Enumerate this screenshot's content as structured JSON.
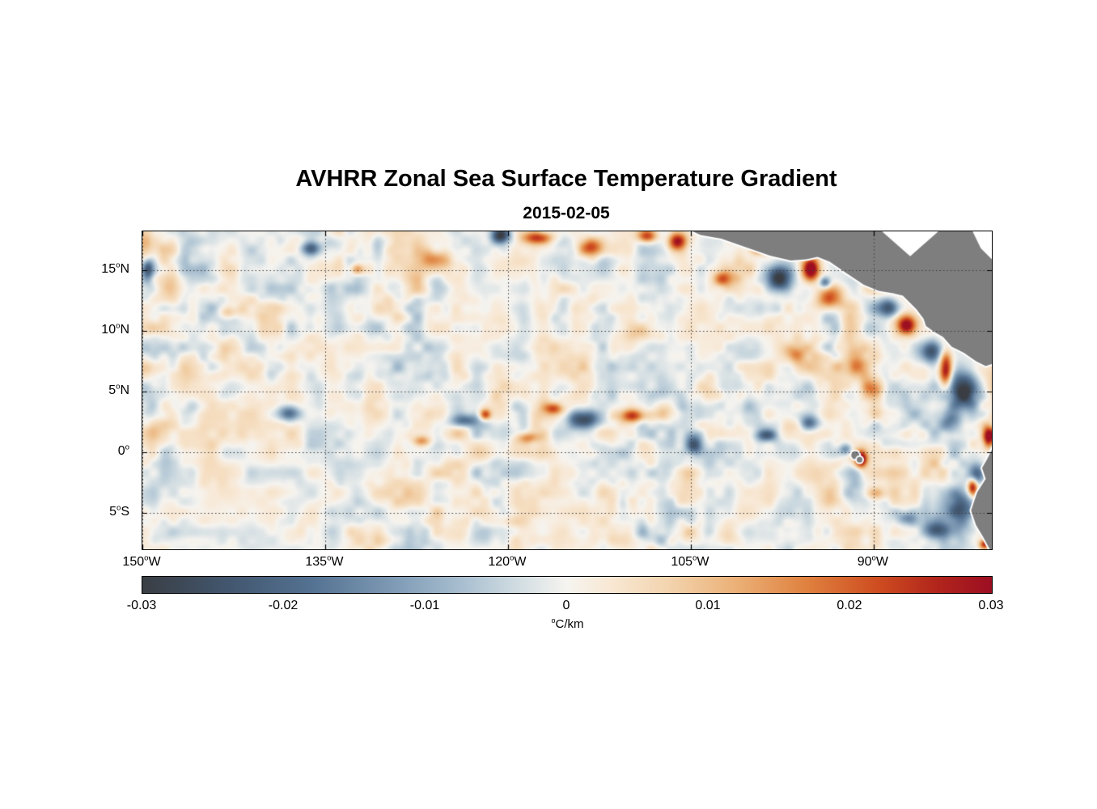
{
  "chart_data": {
    "type": "heatmap",
    "title": "AVHRR Zonal Sea Surface Temperature Gradient",
    "subtitle": "2015-02-05",
    "xlabel": "",
    "ylabel": "",
    "xlim": [
      -150,
      -80.3
    ],
    "ylim": [
      -8,
      18.2
    ],
    "grid": "dotted",
    "x_ticks": [
      {
        "value": -150,
        "text": "150",
        "sup": "o",
        "suffix": "W"
      },
      {
        "value": -135,
        "text": "135",
        "sup": "o",
        "suffix": "W"
      },
      {
        "value": -120,
        "text": "120",
        "sup": "o",
        "suffix": "W"
      },
      {
        "value": -105,
        "text": "105",
        "sup": "o",
        "suffix": "W"
      },
      {
        "value": -90,
        "text": "90",
        "sup": "o",
        "suffix": "W"
      }
    ],
    "y_ticks": [
      {
        "value": 15,
        "text": "15",
        "sup": "o",
        "suffix": "N"
      },
      {
        "value": 10,
        "text": "10",
        "sup": "o",
        "suffix": "N"
      },
      {
        "value": 5,
        "text": "5",
        "sup": "o",
        "suffix": "N"
      },
      {
        "value": 0,
        "text": "0",
        "sup": "o",
        "suffix": ""
      },
      {
        "value": -5,
        "text": "5",
        "sup": "o",
        "suffix": "S"
      }
    ],
    "colorbar": {
      "min": -0.03,
      "max": 0.03,
      "ticks": [
        "-0.03",
        "-0.02",
        "-0.01",
        "0",
        "0.01",
        "0.02",
        "0.03"
      ],
      "label_sup": "o",
      "label_text": "C/km"
    },
    "colormap_stops": [
      {
        "v": -0.03,
        "c": [
          58,
          62,
          68
        ]
      },
      {
        "v": -0.024,
        "c": [
          66,
          86,
          110
        ]
      },
      {
        "v": -0.018,
        "c": [
          84,
          114,
          146
        ]
      },
      {
        "v": -0.012,
        "c": [
          128,
          156,
          182
        ]
      },
      {
        "v": -0.007,
        "c": [
          172,
          194,
          210
        ]
      },
      {
        "v": -0.003,
        "c": [
          214,
          224,
          228
        ]
      },
      {
        "v": 0.0,
        "c": [
          246,
          244,
          240
        ]
      },
      {
        "v": 0.003,
        "c": [
          248,
          232,
          212
        ]
      },
      {
        "v": 0.007,
        "c": [
          243,
          213,
          176
        ]
      },
      {
        "v": 0.012,
        "c": [
          235,
          176,
          118
        ]
      },
      {
        "v": 0.017,
        "c": [
          223,
          128,
          62
        ]
      },
      {
        "v": 0.022,
        "c": [
          206,
          76,
          32
        ]
      },
      {
        "v": 0.026,
        "c": [
          178,
          38,
          28
        ]
      },
      {
        "v": 0.03,
        "c": [
          156,
          14,
          34
        ]
      }
    ],
    "land_color": "#7e7e7e",
    "coast_halo_color": "#ffffff",
    "background_noise": {
      "bias": 0.0006,
      "amp1": 0.006,
      "scale1": 1.7,
      "amp2": 0.0028,
      "scale2": 0.8,
      "mod_base": 0.55,
      "mod_amp": 0.9,
      "mod_scale": 7
    },
    "features": [
      [
        -149.6,
        15.1,
        0.5,
        0.9,
        -0.022
      ],
      [
        -136.2,
        16.8,
        0.9,
        0.6,
        -0.02
      ],
      [
        -132.4,
        15.1,
        0.6,
        0.5,
        0.016
      ],
      [
        -143.0,
        11.5,
        0.9,
        0.7,
        0.012
      ],
      [
        -126.0,
        16.0,
        1.2,
        0.8,
        0.012
      ],
      [
        -120.6,
        17.9,
        0.8,
        0.7,
        -0.03
      ],
      [
        -117.6,
        17.7,
        1.4,
        0.6,
        0.025
      ],
      [
        -113.2,
        16.9,
        1.0,
        0.8,
        0.02
      ],
      [
        -108.6,
        17.8,
        0.9,
        0.6,
        0.026
      ],
      [
        -106.2,
        17.4,
        0.8,
        0.8,
        0.028
      ],
      [
        -102.3,
        14.3,
        1.0,
        0.7,
        0.018
      ],
      [
        -99.5,
        16.8,
        0.8,
        0.5,
        0.02
      ],
      [
        -97.8,
        14.3,
        1.2,
        1.1,
        -0.033
      ],
      [
        -95.2,
        15.1,
        0.75,
        1.1,
        0.036
      ],
      [
        -94.0,
        14.0,
        0.5,
        0.5,
        -0.02
      ],
      [
        -93.6,
        12.6,
        1.3,
        1.0,
        0.022
      ],
      [
        -88.8,
        11.9,
        0.9,
        0.8,
        -0.028
      ],
      [
        -87.3,
        10.5,
        0.9,
        0.9,
        0.032
      ],
      [
        -85.3,
        8.3,
        1.0,
        1.0,
        -0.028
      ],
      [
        -84.1,
        6.9,
        0.55,
        1.5,
        0.03
      ],
      [
        -82.6,
        5.0,
        1.1,
        1.8,
        -0.03
      ],
      [
        -83.6,
        2.8,
        0.9,
        1.2,
        -0.022
      ],
      [
        -80.6,
        1.2,
        0.5,
        1.0,
        0.03
      ],
      [
        -91.3,
        7.0,
        1.5,
        1.2,
        0.017
      ],
      [
        -90.0,
        5.3,
        1.0,
        0.8,
        0.014
      ],
      [
        -96.5,
        8.0,
        1.0,
        0.8,
        0.012
      ],
      [
        -95.3,
        2.4,
        0.9,
        0.7,
        -0.02
      ],
      [
        -98.8,
        1.4,
        1.0,
        0.55,
        -0.024
      ],
      [
        -104.8,
        0.6,
        0.75,
        0.8,
        -0.026
      ],
      [
        -109.8,
        3.0,
        1.3,
        0.6,
        0.024
      ],
      [
        -113.8,
        2.7,
        1.4,
        0.8,
        -0.026
      ],
      [
        -116.3,
        3.6,
        0.8,
        0.5,
        0.018
      ],
      [
        -118.5,
        1.2,
        1.0,
        0.5,
        0.016
      ],
      [
        -121.9,
        3.1,
        0.5,
        0.5,
        0.022
      ],
      [
        -123.6,
        2.6,
        1.2,
        0.6,
        -0.02
      ],
      [
        -127.1,
        0.9,
        0.8,
        0.5,
        0.015
      ],
      [
        -138.0,
        3.2,
        1.0,
        0.7,
        -0.02
      ],
      [
        -109.0,
        10.0,
        1.2,
        0.9,
        0.012
      ],
      [
        -91.05,
        -0.6,
        0.55,
        0.75,
        0.034
      ],
      [
        -92.3,
        0.2,
        0.6,
        0.5,
        -0.016
      ],
      [
        -89.9,
        -3.4,
        0.8,
        0.6,
        0.013
      ],
      [
        -87.3,
        -5.5,
        0.8,
        0.6,
        -0.014
      ],
      [
        -82.9,
        -4.6,
        1.4,
        1.8,
        -0.028
      ],
      [
        -84.9,
        -6.4,
        1.1,
        1.0,
        -0.022
      ],
      [
        -81.6,
        -1.9,
        0.8,
        1.2,
        -0.026
      ],
      [
        -81.9,
        -2.9,
        0.45,
        0.8,
        0.034
      ],
      [
        -80.9,
        -7.6,
        0.5,
        0.45,
        0.028
      ]
    ],
    "land_polygons": [
      [
        [
          -105.4,
          18.45
        ],
        [
          -104.2,
          17.9
        ],
        [
          -102.5,
          17.6
        ],
        [
          -100.5,
          16.9
        ],
        [
          -98.5,
          16.2
        ],
        [
          -96.8,
          15.8
        ],
        [
          -95.5,
          15.9
        ],
        [
          -94.6,
          16.1
        ],
        [
          -93.6,
          15.7
        ],
        [
          -92.3,
          14.8
        ],
        [
          -90.8,
          13.8
        ],
        [
          -89.6,
          13.3
        ],
        [
          -88.4,
          13.1
        ],
        [
          -87.6,
          12.9
        ],
        [
          -87.2,
          12.5
        ],
        [
          -86.5,
          11.8
        ],
        [
          -85.9,
          11.0
        ],
        [
          -85.7,
          10.4
        ],
        [
          -85.0,
          9.9
        ],
        [
          -84.3,
          9.5
        ],
        [
          -83.6,
          8.7
        ],
        [
          -82.6,
          8.2
        ],
        [
          -81.6,
          7.5
        ],
        [
          -80.8,
          7.1
        ],
        [
          -80.2,
          7.3
        ],
        [
          -79.6,
          8.2
        ],
        [
          -78.8,
          8.6
        ],
        [
          -78.0,
          8.0
        ],
        [
          -77.0,
          6.5
        ],
        [
          -76.0,
          18.45
        ]
      ],
      [
        [
          -80.1,
          1.0
        ],
        [
          -80.2,
          0.4
        ],
        [
          -80.7,
          -0.6
        ],
        [
          -81.1,
          -1.3
        ],
        [
          -80.8,
          -2.2
        ],
        [
          -81.5,
          -3.3
        ],
        [
          -82.0,
          -4.8
        ],
        [
          -81.6,
          -6.0
        ],
        [
          -81.0,
          -7.0
        ],
        [
          -80.2,
          -8.5
        ],
        [
          -77.0,
          -8.5
        ],
        [
          -77.0,
          1.0
        ]
      ]
    ],
    "nodata_polygons": [
      [
        [
          -89.6,
          18.45
        ],
        [
          -87.0,
          16.15
        ],
        [
          -84.4,
          18.45
        ]
      ],
      [
        [
          -82.0,
          18.45
        ],
        [
          -80.2,
          18.45
        ],
        [
          -80.2,
          15.8
        ],
        [
          -81.2,
          16.8
        ]
      ]
    ],
    "islands": [
      {
        "lon": -91.5,
        "lat": -0.25,
        "r": 5
      },
      {
        "lon": -91.15,
        "lat": -0.62,
        "r": 3.5
      }
    ]
  }
}
